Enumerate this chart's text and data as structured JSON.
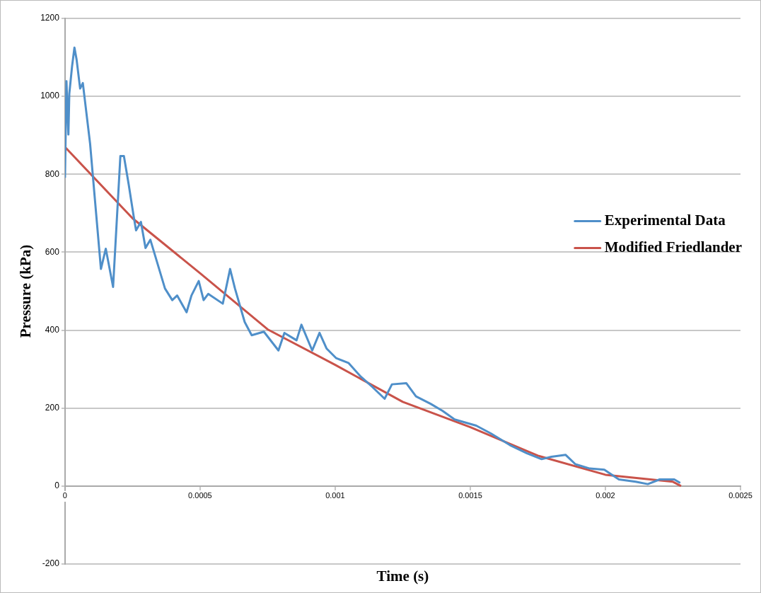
{
  "chart_data": {
    "type": "line",
    "xlabel": "Time (s)",
    "ylabel": "Pressure (kPa)",
    "xlim": [
      0,
      0.0025
    ],
    "xticks": [
      0,
      0.0005,
      0.001,
      0.0015,
      0.002,
      0.0025
    ],
    "ylim": [
      -200,
      1200
    ],
    "yticks": [
      -200,
      0,
      200,
      400,
      600,
      800,
      1000,
      1200
    ],
    "grid": "y",
    "legend": "right",
    "marker": "none",
    "line_style": "solid",
    "series": [
      {
        "name": "Experimental Data",
        "color": "#4f8fc9",
        "x": [
          0,
          5.4e-06,
          1.26e-05,
          1.6e-05,
          2.6e-05,
          3.5e-05,
          4.3e-05,
          5.6e-05,
          6.6e-05,
          9.3e-05,
          0.000106,
          0.000133,
          0.000151,
          0.000178,
          0.000205,
          0.000218,
          0.000236,
          0.000254,
          0.000263,
          0.000281,
          0.000298,
          0.000316,
          0.00037,
          0.000397,
          0.000415,
          0.00045,
          0.000468,
          0.000495,
          0.000513,
          0.00053,
          0.000584,
          0.000611,
          0.000629,
          0.000665,
          0.000691,
          0.000736,
          0.00079,
          0.000812,
          0.000857,
          0.000875,
          0.000915,
          0.000942,
          0.000968,
          0.001004,
          0.001049,
          0.001093,
          0.001138,
          0.001183,
          0.00121,
          0.001263,
          0.001299,
          0.001353,
          0.001397,
          0.001442,
          0.001522,
          0.001576,
          0.001647,
          0.00171,
          0.001764,
          0.0018,
          0.001853,
          0.001889,
          0.001942,
          0.001996,
          0.00205,
          0.002112,
          0.002157,
          0.002201,
          0.002255,
          0.002277
        ],
        "values": [
          791,
          1039,
          902,
          1007,
          1076,
          1125,
          1094,
          1020,
          1034,
          878,
          773,
          557,
          609,
          511,
          847,
          847,
          773,
          693,
          656,
          678,
          611,
          632,
          507,
          477,
          489,
          446,
          489,
          526,
          477,
          493,
          468,
          557,
          507,
          421,
          387,
          396,
          348,
          393,
          374,
          414,
          348,
          393,
          353,
          328,
          316,
          282,
          254,
          224,
          261,
          264,
          230,
          211,
          193,
          171,
          155,
          135,
          105,
          84,
          69,
          75,
          80,
          56,
          45,
          42,
          17,
          11,
          5,
          17,
          17,
          8
        ]
      },
      {
        "name": "Modified Friedlander",
        "color": "#c9534a",
        "x": [
          0,
          0.00025,
          0.0005,
          0.00075,
          0.001,
          0.00125,
          0.0015,
          0.00175,
          0.002,
          0.00225,
          0.00228
        ],
        "values": [
          870,
          687,
          546,
          402,
          311,
          216,
          151,
          78,
          29,
          11,
          0
        ]
      }
    ]
  }
}
